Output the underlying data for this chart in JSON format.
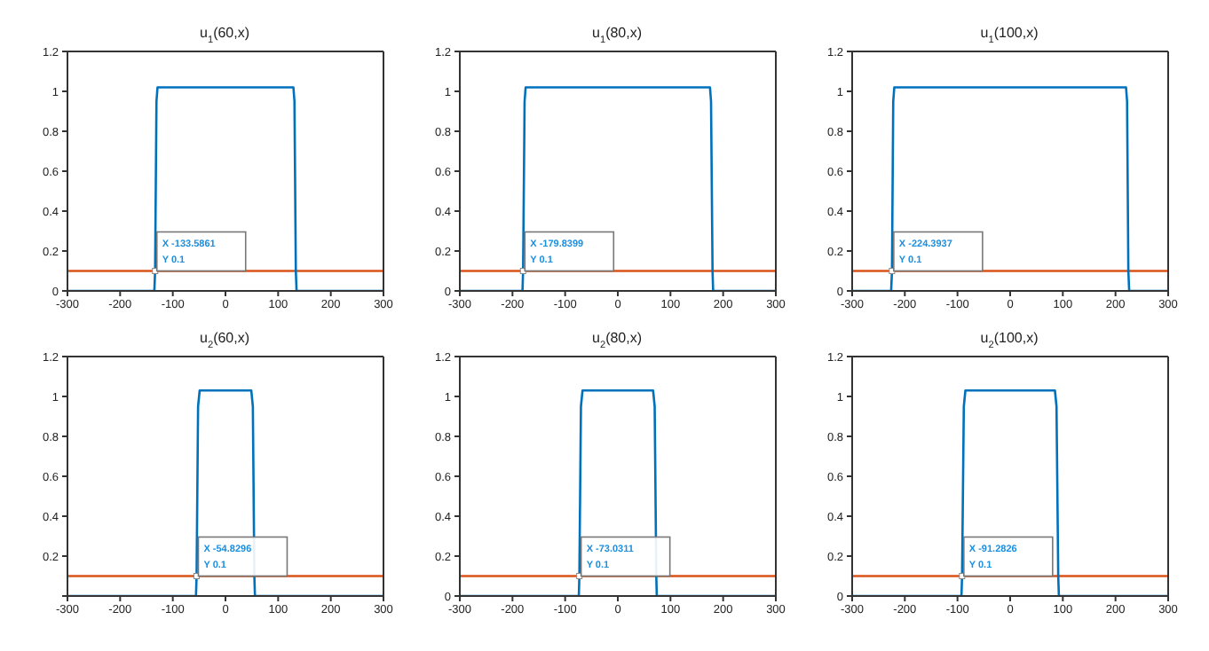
{
  "chart_data": [
    {
      "type": "line",
      "title": "u$_{1}$(60,x)",
      "x": [
        -300,
        -135,
        -133.5861,
        -131,
        -129,
        129,
        131,
        133.5861,
        135,
        300
      ],
      "series": [
        {
          "color": "#0072bd",
          "values": [
            0,
            0,
            0.1,
            0.95,
            1.02,
            1.02,
            0.95,
            0.1,
            0,
            0
          ]
        }
      ],
      "xlim": [
        -300,
        300
      ],
      "ylim": [
        0,
        1.2
      ],
      "xticks": [
        -300,
        -200,
        -100,
        0,
        100,
        200,
        300
      ],
      "yticks": [
        0,
        0.2,
        0.4,
        0.6,
        0.8,
        1,
        1.2
      ],
      "ref_lines": [
        {
          "axis": "y",
          "value": 0.1,
          "color": "#d95319"
        }
      ],
      "annotations": [
        {
          "text": "X -133.5861\nY 0.1",
          "x": -133.5861,
          "y": 0.1
        }
      ]
    },
    {
      "type": "line",
      "title": "u$_{1}$(80,x)",
      "x": [
        -300,
        -181,
        -179.8399,
        -177,
        -175,
        175,
        177,
        179.8399,
        181,
        300
      ],
      "series": [
        {
          "color": "#0072bd",
          "values": [
            0,
            0,
            0.1,
            0.95,
            1.02,
            1.02,
            0.95,
            0.1,
            0,
            0
          ]
        }
      ],
      "xlim": [
        -300,
        300
      ],
      "ylim": [
        0,
        1.2
      ],
      "xticks": [
        -300,
        -200,
        -100,
        0,
        100,
        200,
        300
      ],
      "yticks": [
        0,
        0.2,
        0.4,
        0.6,
        0.8,
        1,
        1.2
      ],
      "ref_lines": [
        {
          "axis": "y",
          "value": 0.1,
          "color": "#d95319"
        }
      ],
      "annotations": [
        {
          "text": "X -179.8399\nY 0.1",
          "x": -179.8399,
          "y": 0.1
        }
      ]
    },
    {
      "type": "line",
      "title": "u$_{1}$(100,x)",
      "x": [
        -300,
        -226,
        -224.3937,
        -222,
        -220,
        220,
        222,
        224.3937,
        226,
        300
      ],
      "series": [
        {
          "color": "#0072bd",
          "values": [
            0,
            0,
            0.1,
            0.95,
            1.02,
            1.02,
            0.95,
            0.1,
            0,
            0
          ]
        }
      ],
      "xlim": [
        -300,
        300
      ],
      "ylim": [
        0,
        1.2
      ],
      "xticks": [
        -300,
        -200,
        -100,
        0,
        100,
        200,
        300
      ],
      "yticks": [
        0,
        0.2,
        0.4,
        0.6,
        0.8,
        1,
        1.2
      ],
      "ref_lines": [
        {
          "axis": "y",
          "value": 0.1,
          "color": "#d95319"
        }
      ],
      "annotations": [
        {
          "text": "X -224.3937\nY 0.1",
          "x": -224.3937,
          "y": 0.1
        }
      ]
    },
    {
      "type": "line",
      "title": "u$_{2}$(60,x)",
      "x": [
        -300,
        -56,
        -54.8296,
        -52,
        -49,
        49,
        52,
        54.8296,
        56,
        300
      ],
      "series": [
        {
          "color": "#0072bd",
          "values": [
            0,
            0,
            0.1,
            0.95,
            1.03,
            1.03,
            0.95,
            0.1,
            0,
            0
          ]
        }
      ],
      "xlim": [
        -300,
        300
      ],
      "ylim": [
        0,
        1.2
      ],
      "xticks": [
        -300,
        -200,
        -100,
        0,
        100,
        200,
        300
      ],
      "yticks": [
        {
          "value": 0,
          "label": null
        },
        0.2,
        0.4,
        0.6,
        0.8,
        1,
        1.2
      ],
      "ref_lines": [
        {
          "axis": "y",
          "value": 0.1,
          "color": "#d95319"
        }
      ],
      "annotations": [
        {
          "text": "X -54.8296\nY 0.1",
          "x": -54.8296,
          "y": 0.1
        }
      ]
    },
    {
      "type": "line",
      "title": "u$_{2}$(80,x)",
      "x": [
        -300,
        -74,
        -73.0311,
        -70,
        -67,
        67,
        70,
        73.0311,
        74,
        300
      ],
      "series": [
        {
          "color": "#0072bd",
          "values": [
            0,
            0,
            0.1,
            0.95,
            1.03,
            1.03,
            0.95,
            0.1,
            0,
            0
          ]
        }
      ],
      "xlim": [
        -300,
        300
      ],
      "ylim": [
        0,
        1.2
      ],
      "xticks": [
        -300,
        -200,
        -100,
        0,
        100,
        200,
        300
      ],
      "yticks": [
        0,
        0.2,
        0.4,
        0.6,
        0.8,
        1,
        1.2
      ],
      "ref_lines": [
        {
          "axis": "y",
          "value": 0.1,
          "color": "#d95319"
        }
      ],
      "annotations": [
        {
          "text": "X -73.0311\nY 0.1",
          "x": -73.0311,
          "y": 0.1
        }
      ]
    },
    {
      "type": "line",
      "title": "u$_{2}$(100,x)",
      "x": [
        -300,
        -92.5,
        -91.2826,
        -88,
        -85,
        85,
        88,
        91.2826,
        92.5,
        300
      ],
      "series": [
        {
          "color": "#0072bd",
          "values": [
            0,
            0,
            0.1,
            0.95,
            1.03,
            1.03,
            0.95,
            0.1,
            0,
            0
          ]
        }
      ],
      "xlim": [
        -300,
        300
      ],
      "ylim": [
        0,
        1.2
      ],
      "xticks": [
        -300,
        -200,
        -100,
        0,
        100,
        200,
        300
      ],
      "yticks": [
        0,
        0.2,
        0.4,
        0.6,
        0.8,
        1,
        1.2
      ],
      "ref_lines": [
        {
          "axis": "y",
          "value": 0.1,
          "color": "#d95319"
        }
      ],
      "annotations": [
        {
          "text": "X -91.2826\nY 0.1",
          "x": -91.2826,
          "y": 0.1
        }
      ]
    }
  ]
}
